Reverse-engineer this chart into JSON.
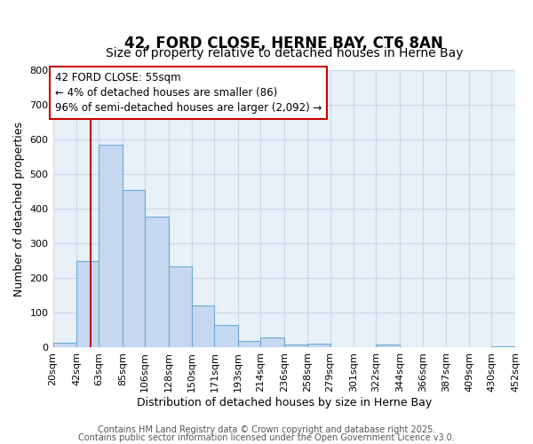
{
  "title": "42, FORD CLOSE, HERNE BAY, CT6 8AN",
  "subtitle": "Size of property relative to detached houses in Herne Bay",
  "xlabel": "Distribution of detached houses by size in Herne Bay",
  "ylabel": "Number of detached properties",
  "bin_edges": [
    20,
    42,
    63,
    85,
    106,
    128,
    150,
    171,
    193,
    214,
    236,
    258,
    279,
    301,
    322,
    344,
    366,
    387,
    409,
    430,
    452
  ],
  "bar_heights": [
    15,
    250,
    585,
    455,
    378,
    235,
    122,
    65,
    20,
    30,
    10,
    12,
    0,
    0,
    8,
    0,
    0,
    0,
    0,
    5
  ],
  "xtick_labels": [
    "20sqm",
    "42sqm",
    "63sqm",
    "85sqm",
    "106sqm",
    "128sqm",
    "150sqm",
    "171sqm",
    "193sqm",
    "214sqm",
    "236sqm",
    "258sqm",
    "279sqm",
    "301sqm",
    "322sqm",
    "344sqm",
    "366sqm",
    "387sqm",
    "409sqm",
    "430sqm",
    "452sqm"
  ],
  "ylim": [
    0,
    800
  ],
  "yticks": [
    0,
    100,
    200,
    300,
    400,
    500,
    600,
    700,
    800
  ],
  "property_line_x": 55,
  "bar_color": "#c5d8f0",
  "bar_edge_color": "#6aaad4",
  "red_line_color": "#cc0000",
  "grid_color": "#c8d8ea",
  "bg_color": "#e8f0f8",
  "annotation_text": "42 FORD CLOSE: 55sqm\n← 4% of detached houses are smaller (86)\n96% of semi-detached houses are larger (2,092) →",
  "annotation_box_color": "#ffffff",
  "annotation_box_edge": "#cc0000",
  "footer_line1": "Contains HM Land Registry data © Crown copyright and database right 2025.",
  "footer_line2": "Contains public sector information licensed under the Open Government Licence v3.0.",
  "title_fontsize": 12,
  "subtitle_fontsize": 10,
  "axis_label_fontsize": 9,
  "tick_fontsize": 8,
  "annotation_fontsize": 8.5,
  "footer_fontsize": 7
}
